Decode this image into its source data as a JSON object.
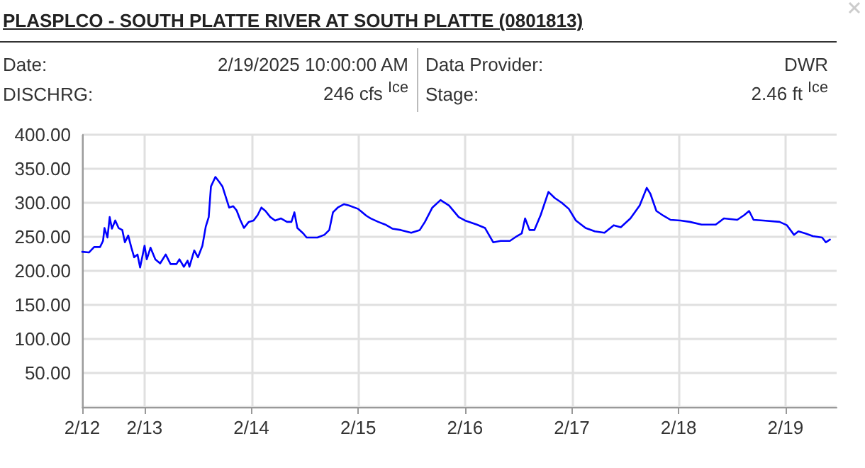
{
  "chart_data": {
    "type": "line",
    "title": "PLASPLCO - SOUTH PLATTE RIVER AT SOUTH PLATTE (0801813)",
    "annotations": [
      "Date:",
      "2/19/2025 10:00:00 AM",
      "Data Provider:",
      "DWR",
      "DISCHRG:",
      "246 cfs $^{Ice}$",
      "Stage:",
      "2.46 ft $^{Ice}$"
    ],
    "x": [
      "2025-02-12T10:00",
      "2025-02-12T11:30",
      "2025-02-12T12:40",
      "2025-02-12T14:00",
      "2025-02-12T14:40",
      "2025-02-12T15:00",
      "2025-02-12T15:40",
      "2025-02-12T16:10",
      "2025-02-12T16:40",
      "2025-02-12T17:25",
      "2025-02-12T18:10",
      "2025-02-12T19:00",
      "2025-02-12T19:35",
      "2025-02-12T20:20",
      "2025-02-12T21:00",
      "2025-02-12T21:40",
      "2025-02-12T22:25",
      "2025-02-12T23:00",
      "2025-02-13T00:00",
      "2025-02-13T00:30",
      "2025-02-13T01:20",
      "2025-02-13T02:25",
      "2025-02-13T03:30",
      "2025-02-13T04:45",
      "2025-02-13T05:50",
      "2025-02-13T07:10",
      "2025-02-13T07:50",
      "2025-02-13T08:50",
      "2025-02-13T09:40",
      "2025-02-13T10:05",
      "2025-02-13T11:10",
      "2025-02-13T12:00",
      "2025-02-13T13:00",
      "2025-02-13T13:45",
      "2025-02-13T14:25",
      "2025-02-13T14:55",
      "2025-02-13T15:55",
      "2025-02-13T16:45",
      "2025-02-13T17:30",
      "2025-02-13T18:20",
      "2025-02-13T19:00",
      "2025-02-13T19:55",
      "2025-02-13T20:40",
      "2025-02-13T21:30",
      "2025-02-13T22:20",
      "2025-02-13T23:25",
      "2025-02-14T00:30",
      "2025-02-14T01:25",
      "2025-02-14T02:15",
      "2025-02-14T03:10",
      "2025-02-14T04:15",
      "2025-02-14T05:20",
      "2025-02-14T06:40",
      "2025-02-14T08:00",
      "2025-02-14T09:00",
      "2025-02-14T09:40",
      "2025-02-14T10:20",
      "2025-02-14T11:40",
      "2025-02-14T12:25",
      "2025-02-14T14:50",
      "2025-02-14T16:25",
      "2025-02-14T17:30",
      "2025-02-14T18:20",
      "2025-02-14T19:25",
      "2025-02-14T20:50",
      "2025-02-14T21:55",
      "2025-02-15T00:00",
      "2025-02-15T01:50",
      "2025-02-15T02:50",
      "2025-02-15T04:30",
      "2025-02-15T06:05",
      "2025-02-15T07:40",
      "2025-02-15T09:35",
      "2025-02-15T11:55",
      "2025-02-15T13:50",
      "2025-02-15T15:00",
      "2025-02-15T16:40",
      "2025-02-15T18:30",
      "2025-02-15T20:25",
      "2025-02-15T22:35",
      "2025-02-16T00:00",
      "2025-02-16T02:40",
      "2025-02-16T04:30",
      "2025-02-16T06:20",
      "2025-02-16T08:00",
      "2025-02-16T10:05",
      "2025-02-16T11:40",
      "2025-02-16T12:45",
      "2025-02-16T13:30",
      "2025-02-16T14:30",
      "2025-02-16T15:35",
      "2025-02-16T17:00",
      "2025-02-16T18:45",
      "2025-02-16T20:10",
      "2025-02-16T21:45",
      "2025-02-16T23:20",
      "2025-02-17T00:55",
      "2025-02-17T03:05",
      "2025-02-17T05:10",
      "2025-02-17T07:20",
      "2025-02-17T09:25",
      "2025-02-17T11:00",
      "2025-02-17T13:10",
      "2025-02-17T15:15",
      "2025-02-17T16:50",
      "2025-02-17T17:40",
      "2025-02-17T19:00",
      "2025-02-17T20:35",
      "2025-02-17T22:10",
      "2025-02-18T00:25",
      "2025-02-18T02:30",
      "2025-02-18T05:10",
      "2025-02-18T08:20",
      "2025-02-18T10:10",
      "2025-02-18T13:10",
      "2025-02-18T14:45",
      "2025-02-18T15:50",
      "2025-02-18T16:50",
      "2025-02-18T19:00",
      "2025-02-18T22:40",
      "2025-02-19T00:20",
      "2025-02-19T01:55",
      "2025-02-19T02:55",
      "2025-02-19T04:30",
      "2025-02-19T06:10",
      "2025-02-19T08:15",
      "2025-02-19T09:05",
      "2025-02-19T10:00"
    ],
    "series": [
      {
        "color": "#0000ff",
        "values": [
          228,
          227,
          235,
          235,
          244,
          263,
          249,
          279,
          262,
          274,
          263,
          260,
          242,
          252,
          235,
          220,
          224,
          205,
          237,
          217,
          234,
          217,
          211,
          224,
          210,
          210,
          217,
          206,
          215,
          206,
          230,
          220,
          237,
          265,
          279,
          324,
          338,
          331,
          324,
          307,
          293,
          295,
          289,
          275,
          263,
          272,
          274,
          282,
          293,
          288,
          279,
          274,
          277,
          272,
          272,
          286,
          263,
          255,
          249,
          249,
          253,
          260,
          286,
          293,
          298,
          296,
          291,
          281,
          277,
          272,
          268,
          262,
          260,
          256,
          260,
          272,
          293,
          304,
          296,
          279,
          274,
          268,
          263,
          242,
          244,
          244,
          251,
          255,
          277,
          260,
          260,
          282,
          316,
          307,
          300,
          291,
          274,
          263,
          258,
          256,
          267,
          264,
          277,
          296,
          322,
          313,
          288,
          281,
          275,
          274,
          272,
          268,
          268,
          277,
          275,
          282,
          288,
          275,
          274,
          272,
          267,
          253,
          258,
          255,
          251,
          249,
          242,
          246
        ]
      }
    ],
    "xlim": [
      "2025-02-12T10:00",
      "2025-02-19T11:30"
    ],
    "xticks": [
      {
        "value": "2025-02-12T10:00",
        "label": "2/12"
      },
      {
        "value": "2025-02-13T00:00",
        "label": "2/13"
      },
      {
        "value": "2025-02-14T00:00",
        "label": "2/14"
      },
      {
        "value": "2025-02-15T00:00",
        "label": "2/15"
      },
      {
        "value": "2025-02-16T00:00",
        "label": "2/16"
      },
      {
        "value": "2025-02-17T00:00",
        "label": "2/17"
      },
      {
        "value": "2025-02-18T00:00",
        "label": "2/18"
      },
      {
        "value": "2025-02-19T00:00",
        "label": "2/19"
      }
    ],
    "ylim": [
      0,
      400
    ],
    "yticks": [
      {
        "value": 0,
        "label": null
      },
      {
        "value": 50,
        "label": "50.00"
      },
      {
        "value": 100,
        "label": "100.00"
      },
      {
        "value": 150,
        "label": "150.00"
      },
      {
        "value": 200,
        "label": "200.00"
      },
      {
        "value": 250,
        "label": "250.00"
      },
      {
        "value": 300,
        "label": "300.00"
      },
      {
        "value": 350,
        "label": "350.00"
      },
      {
        "value": 400,
        "label": "400.00"
      }
    ],
    "grid": true,
    "marker": "none",
    "line_style": "solid"
  }
}
